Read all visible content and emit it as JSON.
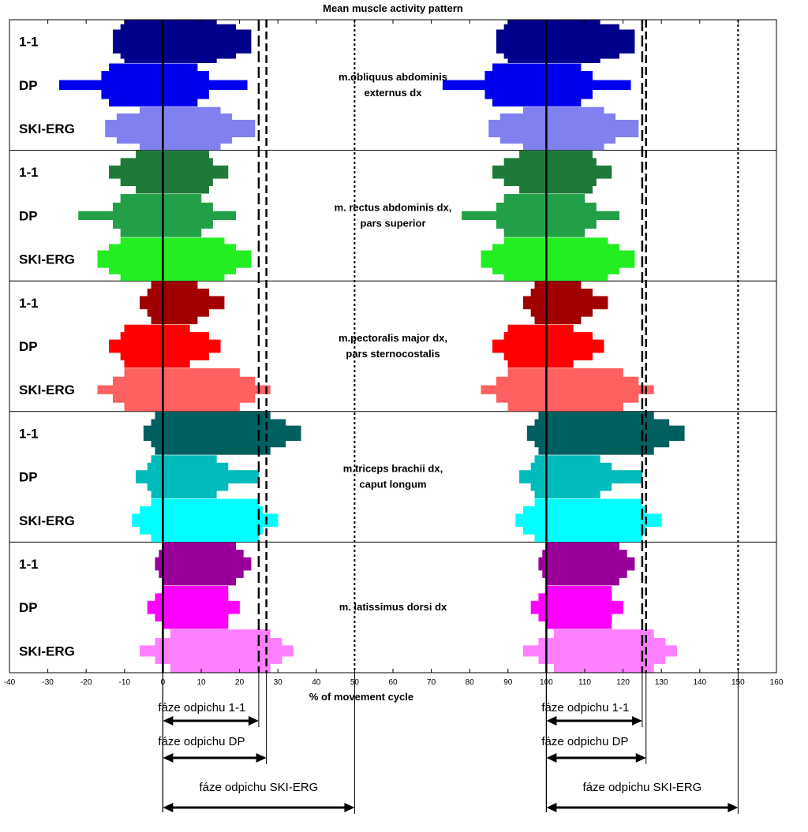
{
  "chart_data": {
    "type": "bar",
    "title": "Mean muscle activity pattern",
    "xlabel": "% of movement cycle",
    "xlim": [
      -40,
      160
    ],
    "xticks": [
      "-40",
      "-30",
      "-20",
      "-10",
      "0",
      "10",
      "20",
      "30",
      "40",
      "50",
      "60",
      "70",
      "80",
      "90",
      "100",
      "110",
      "120",
      "130",
      "140",
      "150",
      "160"
    ],
    "reference_lines": {
      "solid": [
        0,
        100
      ],
      "long_dash": [
        25,
        125
      ],
      "dash": [
        27,
        126
      ],
      "dotted": [
        50,
        150
      ]
    },
    "groups": [
      {
        "muscle": [
          "m.obliquus abdominis",
          "externus dx"
        ],
        "rows": [
          {
            "label": "1-1",
            "color": "#00008b",
            "layers": [
              [
                -13,
                23,
                0.55
              ],
              [
                -11,
                19,
                0.8
              ],
              [
                -10,
                14,
                1.0
              ]
            ]
          },
          {
            "label": "DP",
            "color": "#0000ee",
            "layers": [
              [
                -27,
                22,
                0.22
              ],
              [
                -16,
                12,
                0.65
              ],
              [
                -14,
                9,
                1.0
              ]
            ]
          },
          {
            "label": "SKI-ERG",
            "color": "#8080ee",
            "layers": [
              [
                -15,
                24,
                0.4
              ],
              [
                -12,
                18,
                0.7
              ],
              [
                -6,
                15,
                1.0
              ]
            ]
          }
        ]
      },
      {
        "muscle": [
          "m. rectus abdominis dx,",
          "pars superior"
        ],
        "rows": [
          {
            "label": "1-1",
            "color": "#1f7a3a",
            "layers": [
              [
                -14,
                17,
                0.3
              ],
              [
                -11,
                13,
                0.65
              ],
              [
                -7,
                12,
                1.0
              ]
            ]
          },
          {
            "label": "DP",
            "color": "#22a048",
            "layers": [
              [
                -22,
                19,
                0.2
              ],
              [
                -13,
                13,
                0.6
              ],
              [
                -11,
                10,
                1.0
              ]
            ]
          },
          {
            "label": "SKI-ERG",
            "color": "#22ee22",
            "layers": [
              [
                -17,
                23,
                0.4
              ],
              [
                -14,
                19,
                0.7
              ],
              [
                -11,
                16,
                1.0
              ]
            ]
          }
        ]
      },
      {
        "muscle": [
          "m.pectoralis major dx,",
          "pars sternocostalis"
        ],
        "rows": [
          {
            "label": "1-1",
            "color": "#a00000",
            "layers": [
              [
                -6,
                16,
                0.3
              ],
              [
                -4,
                12,
                0.65
              ],
              [
                -3,
                9,
                1.0
              ]
            ]
          },
          {
            "label": "DP",
            "color": "#ff0000",
            "layers": [
              [
                -14,
                15,
                0.3
              ],
              [
                -11,
                12,
                0.65
              ],
              [
                -10,
                7,
                1.0
              ]
            ]
          },
          {
            "label": "SKI-ERG",
            "color": "#ff6060",
            "layers": [
              [
                -17,
                28,
                0.2
              ],
              [
                -13,
                24,
                0.6
              ],
              [
                -10,
                20,
                1.0
              ]
            ]
          }
        ]
      },
      {
        "muscle": [
          "m.triceps brachii dx,",
          "caput longum"
        ],
        "rows": [
          {
            "label": "1-1",
            "color": "#005f5f",
            "layers": [
              [
                -5,
                36,
                0.35
              ],
              [
                -3,
                32,
                0.65
              ],
              [
                -2,
                28,
                1.0
              ]
            ]
          },
          {
            "label": "DP",
            "color": "#00bbbb",
            "layers": [
              [
                -7,
                25,
                0.3
              ],
              [
                -4,
                17,
                0.65
              ],
              [
                -3,
                14,
                1.0
              ]
            ]
          },
          {
            "label": "SKI-ERG",
            "color": "#00ffff",
            "layers": [
              [
                -8,
                30,
                0.3
              ],
              [
                -6,
                26,
                0.65
              ],
              [
                -3,
                25,
                1.0
              ]
            ]
          }
        ]
      },
      {
        "muscle": [
          "m. latissimus dorsi dx"
        ],
        "rows": [
          {
            "label": "1-1",
            "color": "#990099",
            "layers": [
              [
                -2,
                23,
                0.3
              ],
              [
                -1,
                21,
                0.65
              ],
              [
                0,
                19,
                1.0
              ]
            ]
          },
          {
            "label": "DP",
            "color": "#ff00ff",
            "layers": [
              [
                -4,
                20,
                0.3
              ],
              [
                -2,
                17,
                0.65
              ],
              [
                0,
                17,
                1.0
              ]
            ]
          },
          {
            "label": "SKI-ERG",
            "color": "#ff80ff",
            "layers": [
              [
                -6,
                34,
                0.25
              ],
              [
                -2,
                31,
                0.6
              ],
              [
                2,
                28,
                1.0
              ]
            ]
          }
        ]
      }
    ],
    "phases": [
      {
        "label": "fáze odpichu 1-1",
        "start": 0,
        "end": 25,
        "start2": 100,
        "end2": 125
      },
      {
        "label": "fáze odpichu  DP",
        "start": 0,
        "end": 27,
        "start2": 100,
        "end2": 126
      },
      {
        "label": "fáze odpichu SKI-ERG",
        "start": 0,
        "end": 50,
        "start2": 100,
        "end2": 150
      }
    ]
  }
}
